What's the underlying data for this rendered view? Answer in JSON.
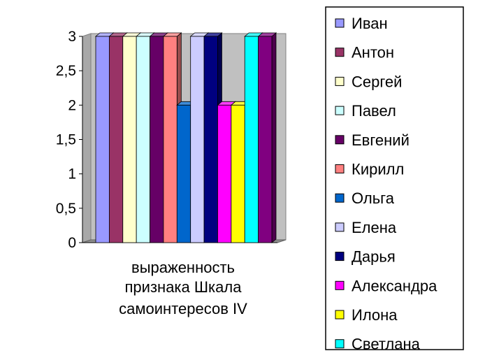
{
  "chart_data": {
    "type": "bar",
    "style": "3d-clustered-column",
    "category_label_lines": [
      "выраженность",
      "признака Шкала",
      "самоинтересов IV"
    ],
    "ylim": [
      0,
      3
    ],
    "yticks": [
      "0",
      "0,5",
      "1",
      "1,5",
      "2",
      "2,5",
      "3"
    ],
    "ytick_values": [
      0,
      0.5,
      1,
      1.5,
      2,
      2.5,
      3
    ],
    "grid": false,
    "legend_position": "right",
    "series": [
      {
        "name": "Иван",
        "values": [
          3
        ],
        "color": "#9999ff"
      },
      {
        "name": "Антон",
        "values": [
          3
        ],
        "color": "#993366"
      },
      {
        "name": "Сергей",
        "values": [
          3
        ],
        "color": "#ffffcc"
      },
      {
        "name": "Павел",
        "values": [
          3
        ],
        "color": "#ccffff"
      },
      {
        "name": "Евгений",
        "values": [
          3
        ],
        "color": "#660066"
      },
      {
        "name": "Кирилл",
        "values": [
          3
        ],
        "color": "#ff8080"
      },
      {
        "name": "Ольга",
        "values": [
          2
        ],
        "color": "#0066cc"
      },
      {
        "name": "Елена",
        "values": [
          3
        ],
        "color": "#ccccff"
      },
      {
        "name": "Дарья",
        "values": [
          3
        ],
        "color": "#000080"
      },
      {
        "name": "Александра",
        "values": [
          2
        ],
        "color": "#ff00ff"
      },
      {
        "name": "Илона",
        "values": [
          2
        ],
        "color": "#ffff00"
      },
      {
        "name": "Светлана",
        "values": [
          3
        ],
        "color": "#00ffff"
      },
      {
        "name": "",
        "values": [
          3
        ],
        "color": "#800080"
      }
    ]
  }
}
